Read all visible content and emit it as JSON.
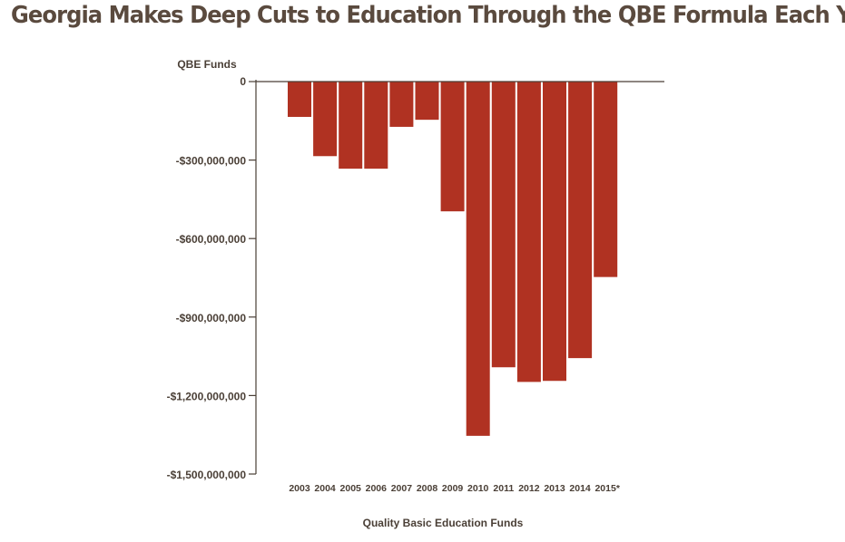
{
  "title": "Georgia Makes Deep Cuts to Education Through the QBE Formula Each Year",
  "colors": {
    "bar": "#b03222",
    "axis": "#4a3f36",
    "title": "#5a4a3e"
  },
  "chart_data": {
    "type": "bar",
    "title": "Georgia Makes Deep Cuts to Education Through the QBE Formula Each Year",
    "ylabel": "QBE Funds",
    "xlabel": "Quality Basic Education Funds",
    "categories": [
      "2003",
      "2004",
      "2005",
      "2006",
      "2007",
      "2008",
      "2009",
      "2010",
      "2011",
      "2012",
      "2013",
      "2014",
      "2015*"
    ],
    "series": [
      {
        "values": [
          -135000000,
          -285000000,
          -333000000,
          -333000000,
          -173000000,
          -146000000,
          -496000000,
          -1354000000,
          -1092000000,
          -1148000000,
          -1144000000,
          -1057000000,
          -747000000
        ]
      }
    ],
    "ylim": [
      -1500000000,
      0
    ],
    "yticks": [
      0,
      -300000000,
      -600000000,
      -900000000,
      -1200000000,
      -1500000000
    ],
    "ytick_labels": [
      "0",
      "-$300,000,000",
      "-$600,000,000",
      "-$900,000,000",
      "-$1,200,000,000",
      "-$1,500,000,000"
    ],
    "grid": false,
    "legend": "none"
  }
}
